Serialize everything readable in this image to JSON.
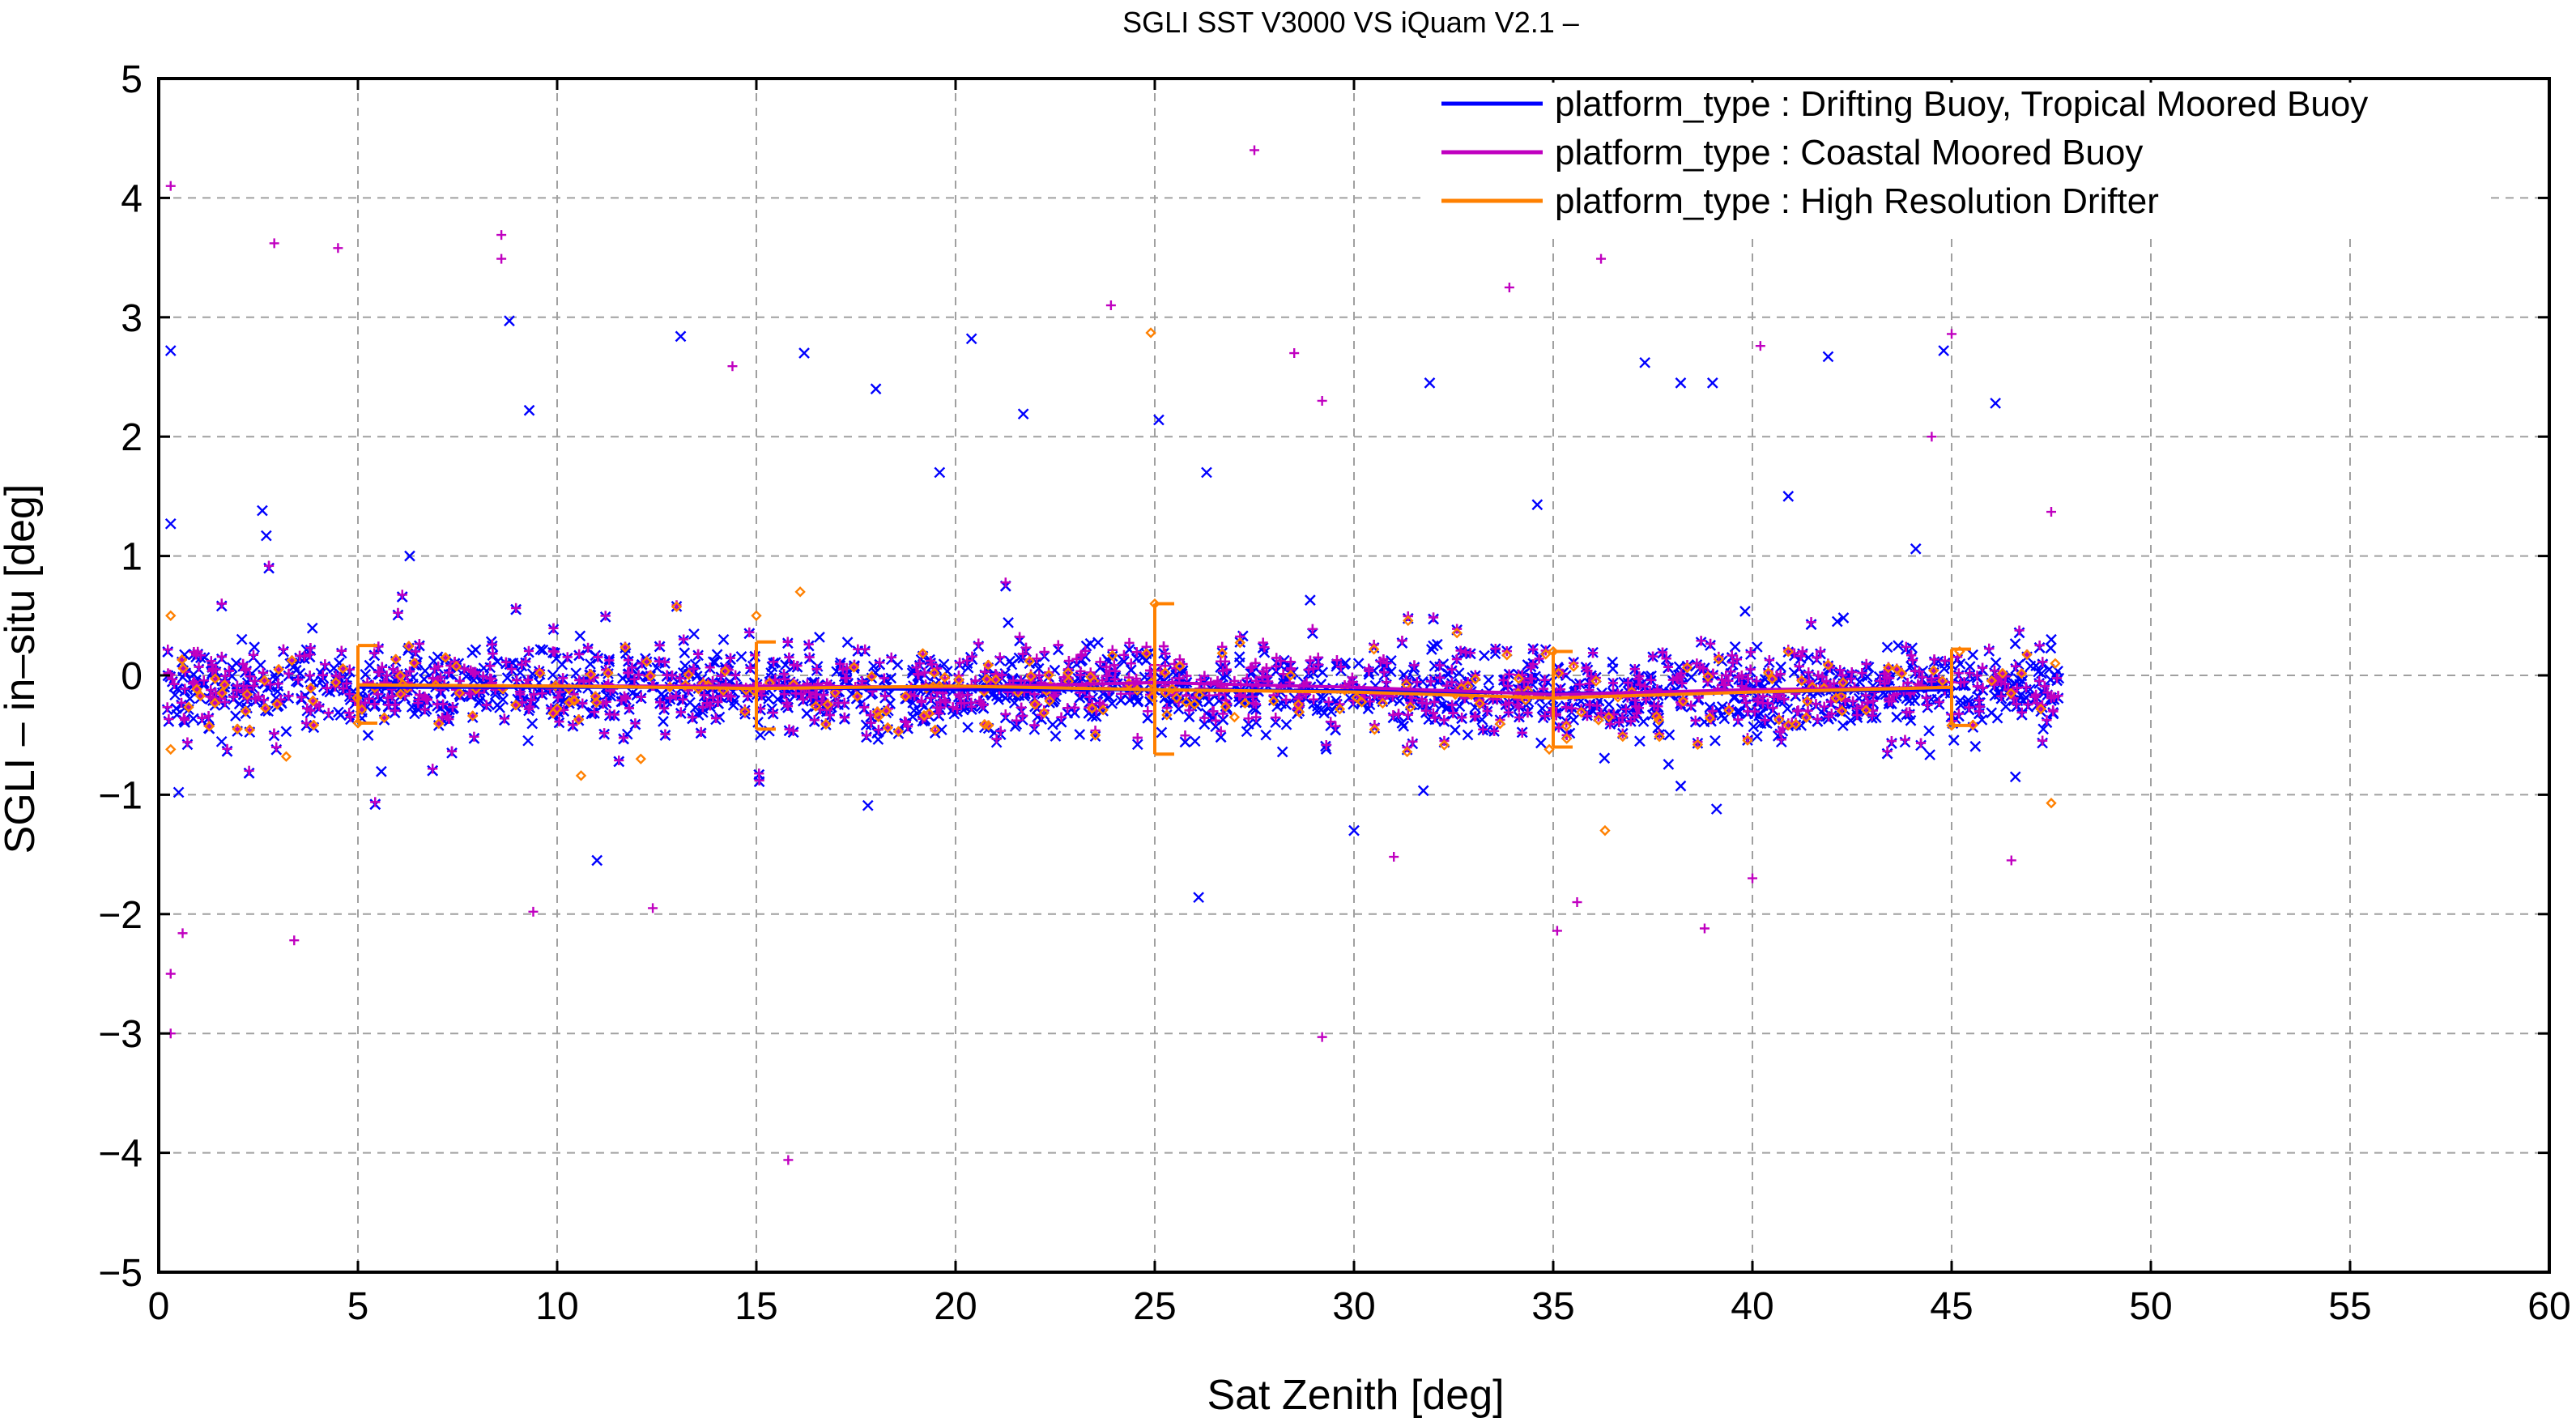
{
  "chart_data": {
    "type": "scatter",
    "title": "SGLI SST V3000 VS iQuam V2.1  –",
    "xlabel": "Sat Zenith [deg]",
    "ylabel": "SGLI – in–situ [deg]",
    "xlim": [
      0,
      60
    ],
    "ylim": [
      -5,
      5
    ],
    "x_ticks": [
      0,
      5,
      10,
      15,
      20,
      25,
      30,
      35,
      40,
      45,
      50,
      55,
      60
    ],
    "y_ticks": [
      -5,
      -4,
      -3,
      -2,
      -1,
      0,
      1,
      2,
      3,
      4,
      5
    ],
    "y_tick_labels": [
      "−5",
      "−4",
      "−3",
      "−2",
      "−1",
      "0",
      "1",
      "2",
      "3",
      "4",
      "5"
    ],
    "grid": true,
    "legend_position": "top-right",
    "series": [
      {
        "name": "platform_type : Drifting Buoy, Tropical Moored Buoy",
        "color": "#0000ff",
        "marker": "x",
        "mean_line": {
          "x": [
            5,
            10,
            15,
            20,
            25,
            30,
            35,
            40,
            45
          ],
          "y": [
            -0.1,
            -0.1,
            -0.1,
            -0.12,
            -0.12,
            -0.13,
            -0.15,
            -0.14,
            -0.12
          ]
        },
        "sample_points": [
          [
            0.3,
            2.72
          ],
          [
            0.3,
            1.27
          ],
          [
            0.5,
            -0.98
          ],
          [
            2.6,
            1.38
          ],
          [
            2.7,
            1.17
          ],
          [
            6.3,
            1.0
          ],
          [
            8.8,
            2.97
          ],
          [
            9.3,
            2.22
          ],
          [
            11.0,
            -1.55
          ],
          [
            13.1,
            2.84
          ],
          [
            15.1,
            -0.5
          ],
          [
            16.2,
            2.7
          ],
          [
            17.8,
            -1.09
          ],
          [
            18.0,
            2.4
          ],
          [
            19.6,
            1.7
          ],
          [
            20.4,
            2.82
          ],
          [
            21.7,
            2.19
          ],
          [
            25.1,
            2.14
          ],
          [
            26.1,
            -1.86
          ],
          [
            26.3,
            1.7
          ],
          [
            28.9,
            0.63
          ],
          [
            30.0,
            -1.3
          ],
          [
            31.9,
            2.45
          ],
          [
            34.6,
            1.43
          ],
          [
            37.3,
            2.62
          ],
          [
            38.2,
            2.45
          ],
          [
            39.0,
            2.45
          ],
          [
            39.1,
            -1.12
          ],
          [
            40.9,
            1.5
          ],
          [
            41.9,
            2.67
          ],
          [
            44.1,
            1.06
          ],
          [
            44.8,
            2.72
          ],
          [
            46.1,
            2.28
          ],
          [
            46.6,
            -0.85
          ],
          [
            47.3,
            -0.45
          ],
          [
            47.5,
            0.3
          ]
        ]
      },
      {
        "name": "platform_type : Coastal Moored Buoy",
        "color": "#c000c0",
        "marker": "+",
        "mean_line": {
          "x": [
            5,
            10,
            15,
            20,
            25,
            30,
            35,
            40,
            45
          ],
          "y": [
            -0.08,
            -0.09,
            -0.09,
            -0.1,
            -0.06,
            -0.1,
            -0.16,
            -0.12,
            -0.1
          ]
        },
        "sample_points": [
          [
            0.3,
            4.1
          ],
          [
            0.3,
            -2.5
          ],
          [
            0.3,
            -3.0
          ],
          [
            0.6,
            -2.16
          ],
          [
            2.9,
            3.62
          ],
          [
            3.4,
            -2.22
          ],
          [
            4.5,
            3.58
          ],
          [
            8.6,
            3.69
          ],
          [
            8.6,
            3.49
          ],
          [
            9.4,
            -1.98
          ],
          [
            12.4,
            -1.95
          ],
          [
            14.4,
            2.59
          ],
          [
            15.8,
            -4.06
          ],
          [
            23.9,
            3.1
          ],
          [
            27.5,
            4.4
          ],
          [
            28.5,
            2.7
          ],
          [
            29.2,
            2.3
          ],
          [
            29.2,
            -3.03
          ],
          [
            31.0,
            -1.52
          ],
          [
            33.9,
            3.25
          ],
          [
            35.1,
            -2.14
          ],
          [
            35.6,
            -1.9
          ],
          [
            36.2,
            3.49
          ],
          [
            38.8,
            -2.12
          ],
          [
            40.2,
            2.76
          ],
          [
            40.0,
            -1.7
          ],
          [
            45.0,
            2.86
          ],
          [
            46.5,
            -1.55
          ],
          [
            47.5,
            1.37
          ],
          [
            44.5,
            2.0
          ]
        ]
      },
      {
        "name": "platform_type : High Resolution Drifter",
        "color": "#ff8000",
        "marker": "diamond",
        "mean_line": {
          "x": [
            5,
            10,
            15,
            20,
            25,
            30,
            35,
            40,
            45
          ],
          "y": [
            -0.08,
            -0.09,
            -0.11,
            -0.09,
            -0.12,
            -0.14,
            -0.19,
            -0.14,
            -0.1
          ]
        },
        "error_bars": [
          {
            "x": 5,
            "low": -0.4,
            "high": 0.25
          },
          {
            "x": 15,
            "low": -0.45,
            "high": 0.28
          },
          {
            "x": 25,
            "low": -0.66,
            "high": 0.6
          },
          {
            "x": 35,
            "low": -0.6,
            "high": 0.2
          },
          {
            "x": 45,
            "low": -0.42,
            "high": 0.22
          }
        ],
        "sample_points": [
          [
            0.3,
            0.5
          ],
          [
            0.3,
            -0.62
          ],
          [
            3.2,
            -0.68
          ],
          [
            5.0,
            -0.4
          ],
          [
            10.6,
            -0.84
          ],
          [
            12.1,
            -0.7
          ],
          [
            15.0,
            0.5
          ],
          [
            16.1,
            0.7
          ],
          [
            24.9,
            2.87
          ],
          [
            25.0,
            0.6
          ],
          [
            34.9,
            -0.62
          ],
          [
            35.0,
            0.2
          ],
          [
            36.3,
            -1.3
          ],
          [
            45.0,
            -0.42
          ],
          [
            45.2,
            0.2
          ],
          [
            47.5,
            -1.07
          ],
          [
            47.6,
            0.1
          ],
          [
            27.0,
            -0.35
          ]
        ]
      }
    ]
  }
}
